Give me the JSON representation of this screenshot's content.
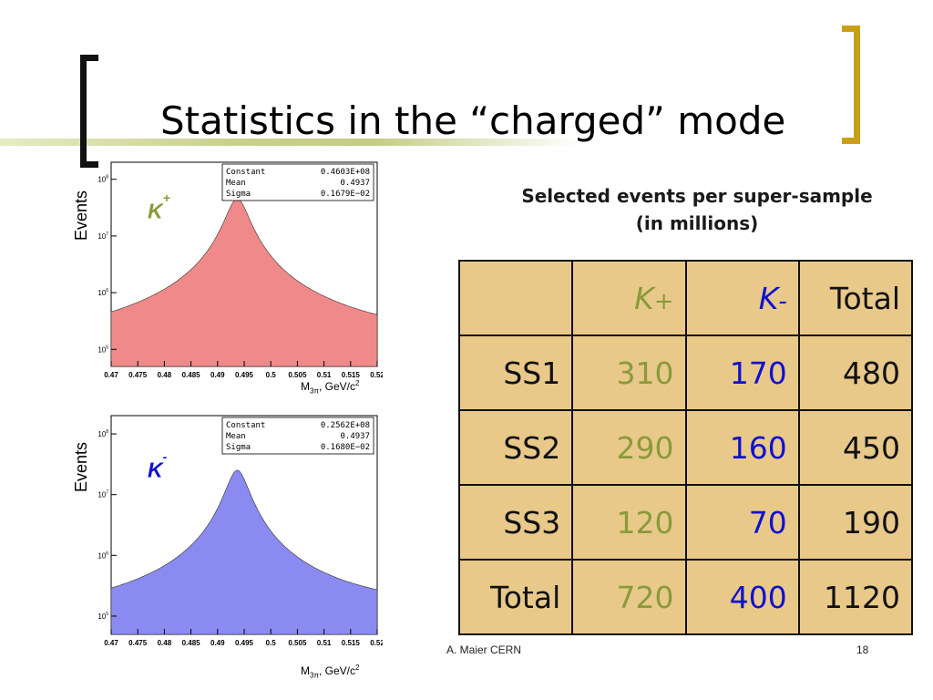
{
  "slide": {
    "title": "Statistics in the “charged” mode",
    "footer_author": "A. Maier CERN",
    "page_number": "18"
  },
  "colors": {
    "bracket_left": "#111111",
    "bracket_right": "#c9a015",
    "band": "#c4cc84",
    "kplus_fill": "#f08a8a",
    "kminus_fill": "#8a8af0",
    "kplus_label": "#8a9a3a",
    "kminus_label": "#1010d0",
    "table_bg": "#e8c98a"
  },
  "chart_data": [
    {
      "type": "area",
      "particle_label": "K",
      "particle_charge": "+",
      "ylabel": "Events",
      "xlabel_main": "M",
      "xlabel_sub": "3π",
      "xlabel_unit": ", GeV/c",
      "xlabel_sup": "2",
      "xlim": [
        0.47,
        0.52
      ],
      "ylim": [
        50000,
        200000000
      ],
      "yscale": "log",
      "x_ticks": [
        "0.47",
        "0.475",
        "0.48",
        "0.485",
        "0.49",
        "0.495",
        "0.5",
        "0.505",
        "0.51",
        "0.515",
        "0.52"
      ],
      "y_ticks": [
        {
          "base": "10",
          "exp": "5",
          "value": 100000
        },
        {
          "base": "10",
          "exp": "6",
          "value": 1000000
        },
        {
          "base": "10",
          "exp": "7",
          "value": 10000000
        },
        {
          "base": "10",
          "exp": "8",
          "value": 100000000
        }
      ],
      "curve": {
        "peak_events": 45000000,
        "mean": 0.4937,
        "sigma": 0.00168,
        "left_edge_events": 80000,
        "right_edge_events": 100000
      },
      "stats": [
        {
          "name": "Constant",
          "value": "0.4603E+08"
        },
        {
          "name": "Mean",
          "value": "0.4937"
        },
        {
          "name": "Sigma",
          "value": "0.1679E−02"
        }
      ]
    },
    {
      "type": "area",
      "particle_label": "K",
      "particle_charge": "-",
      "ylabel": "Events",
      "xlabel_main": "M",
      "xlabel_sub": "3π",
      "xlabel_unit": ", GeV/c",
      "xlabel_sup": "2",
      "xlim": [
        0.47,
        0.52
      ],
      "ylim": [
        50000,
        200000000
      ],
      "yscale": "log",
      "x_ticks": [
        "0.47",
        "0.475",
        "0.48",
        "0.485",
        "0.49",
        "0.495",
        "0.5",
        "0.505",
        "0.51",
        "0.515",
        "0.52"
      ],
      "y_ticks": [
        {
          "base": "10",
          "exp": "5",
          "value": 100000
        },
        {
          "base": "10",
          "exp": "6",
          "value": 1000000
        },
        {
          "base": "10",
          "exp": "7",
          "value": 10000000
        },
        {
          "base": "10",
          "exp": "8",
          "value": 100000000
        }
      ],
      "curve": {
        "peak_events": 25000000,
        "mean": 0.4937,
        "sigma": 0.00168,
        "left_edge_events": 80000,
        "right_edge_events": 100000
      },
      "stats": [
        {
          "name": "Constant",
          "value": "0.2562E+08"
        },
        {
          "name": "Mean",
          "value": "0.4937"
        },
        {
          "name": "Sigma",
          "value": "0.1680E−02"
        }
      ]
    },
    {
      "type": "table",
      "caption_line1": "Selected events per super-sample",
      "caption_line2": "(in millions)",
      "headers": {
        "blank": "",
        "kplus_base": "K",
        "kplus_sign": "+",
        "kminus_base": "K",
        "kminus_sign": "-",
        "total": "Total"
      },
      "rows": [
        {
          "label": "SS1",
          "kplus": "310",
          "kminus": "170",
          "total": "480"
        },
        {
          "label": "SS2",
          "kplus": "290",
          "kminus": "160",
          "total": "450"
        },
        {
          "label": "SS3",
          "kplus": "120",
          "kminus": "70",
          "total": "190"
        },
        {
          "label": "Total",
          "kplus": "720",
          "kminus": "400",
          "total": "1120"
        }
      ]
    }
  ]
}
